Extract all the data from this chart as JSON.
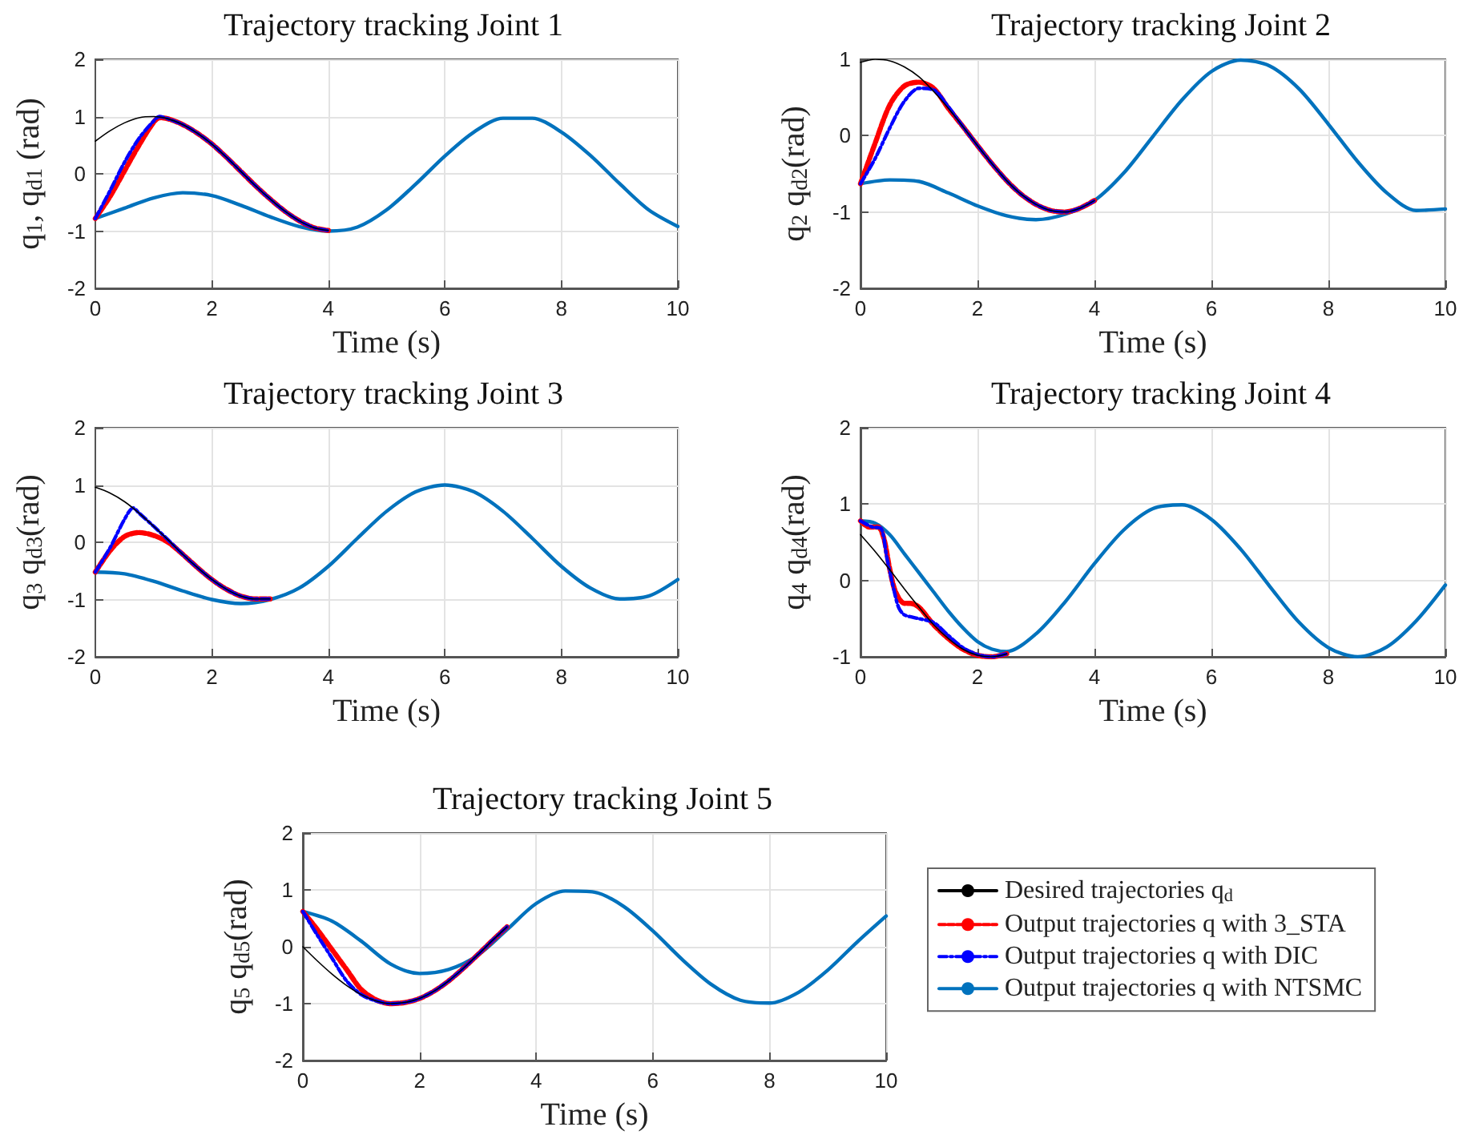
{
  "chart_data": [
    {
      "type": "line",
      "title": "Trajectory tracking Joint 1",
      "xlabel": "Time (s)",
      "ylabel": "q$_{1}$, q$_{d1}$ (rad)",
      "xlim": [
        0,
        10
      ],
      "xticks": [
        0,
        2,
        4,
        6,
        8,
        10
      ],
      "ylim": [
        -2,
        2
      ],
      "yticks": [
        -2,
        -1,
        0,
        1,
        2
      ],
      "grid": true,
      "series": [
        {
          "color": "#000000",
          "line_style": "solid",
          "x": [
            0,
            0.25,
            0.5,
            0.75,
            1,
            1.25,
            1.5,
            1.75,
            2,
            2.25,
            2.5,
            2.75,
            3,
            3.25,
            3.5,
            3.75,
            4
          ],
          "values": [
            0.57,
            0.75,
            0.89,
            0.98,
            1.0,
            0.96,
            0.86,
            0.71,
            0.52,
            0.29,
            0.04,
            -0.21,
            -0.44,
            -0.65,
            -0.82,
            -0.94,
            -0.99
          ]
        },
        {
          "color": "#ff0000",
          "line_style": "dashed",
          "x": [
            0,
            0.25,
            0.5,
            0.75,
            1,
            1.1,
            1.25,
            1.5,
            1.75,
            2,
            2.25,
            2.5,
            2.75,
            3,
            3.25,
            3.5,
            3.75,
            4
          ],
          "values": [
            -0.78,
            -0.4,
            0.05,
            0.5,
            0.9,
            0.98,
            0.96,
            0.86,
            0.71,
            0.52,
            0.29,
            0.04,
            -0.21,
            -0.44,
            -0.65,
            -0.82,
            -0.94,
            -0.99
          ]
        },
        {
          "color": "#0000ff",
          "line_style": "dotted",
          "x": [
            0,
            0.25,
            0.5,
            0.75,
            1,
            1.1,
            1.25,
            1.5,
            1.75,
            2,
            2.25,
            2.5,
            2.75,
            3,
            3.25,
            3.5,
            3.75,
            4
          ],
          "values": [
            -0.78,
            -0.3,
            0.2,
            0.62,
            0.92,
            1.0,
            0.96,
            0.86,
            0.71,
            0.52,
            0.29,
            0.04,
            -0.21,
            -0.44,
            -0.65,
            -0.82,
            -0.94,
            -0.99
          ]
        },
        {
          "color": "#0072bd",
          "line_style": "solid",
          "x": [
            0,
            0.5,
            1,
            1.5,
            2,
            2.5,
            3,
            3.5,
            4,
            4.5,
            5,
            5.5,
            6,
            6.5,
            7,
            7.5,
            8,
            8.5,
            9,
            9.5,
            10
          ],
          "values": [
            -0.78,
            -0.6,
            -0.42,
            -0.33,
            -0.38,
            -0.55,
            -0.75,
            -0.92,
            -1.0,
            -0.93,
            -0.63,
            -0.18,
            0.31,
            0.73,
            0.97,
            0.97,
            0.73,
            0.32,
            -0.17,
            -0.63,
            -0.92
          ]
        }
      ]
    },
    {
      "type": "line",
      "title": "Trajectory tracking Joint 2",
      "xlabel": "Time (s)",
      "ylabel": "q$_{2}$ q$_{d2}$(rad)",
      "xlim": [
        0,
        10
      ],
      "xticks": [
        0,
        2,
        4,
        6,
        8,
        10
      ],
      "ylim": [
        -2,
        1
      ],
      "yticks": [
        -2,
        -1,
        0,
        1
      ],
      "grid": true,
      "series": [
        {
          "color": "#000000",
          "line_style": "solid",
          "x": [
            0,
            0.25,
            0.5,
            0.75,
            1,
            1.25,
            1.5,
            1.75,
            2,
            2.25,
            2.5,
            2.75,
            3,
            3.25,
            3.5,
            3.75,
            4
          ],
          "values": [
            0.96,
            1.0,
            0.98,
            0.9,
            0.77,
            0.58,
            0.36,
            0.12,
            -0.13,
            -0.37,
            -0.59,
            -0.77,
            -0.9,
            -0.98,
            -1.0,
            -0.95,
            -0.85
          ]
        },
        {
          "color": "#ff0000",
          "line_style": "dashed",
          "x": [
            0,
            0.25,
            0.5,
            0.75,
            1,
            1.25,
            1.5,
            1.75,
            2,
            2.25,
            2.5,
            2.75,
            3,
            3.25,
            3.5,
            3.75,
            4
          ],
          "values": [
            -0.63,
            -0.1,
            0.4,
            0.65,
            0.7,
            0.62,
            0.36,
            0.12,
            -0.13,
            -0.37,
            -0.59,
            -0.77,
            -0.9,
            -0.98,
            -1.0,
            -0.95,
            -0.85
          ]
        },
        {
          "color": "#0000ff",
          "line_style": "dotted",
          "x": [
            0,
            0.25,
            0.5,
            0.75,
            1,
            1.25,
            1.5,
            1.75,
            2,
            2.25,
            2.5,
            2.75,
            3,
            3.25,
            3.5,
            3.75,
            4
          ],
          "values": [
            -0.63,
            -0.3,
            0.1,
            0.45,
            0.62,
            0.6,
            0.38,
            0.12,
            -0.13,
            -0.37,
            -0.59,
            -0.77,
            -0.9,
            -0.98,
            -1.0,
            -0.95,
            -0.85
          ]
        },
        {
          "color": "#0072bd",
          "line_style": "solid",
          "x": [
            0,
            0.5,
            1,
            1.5,
            2,
            2.5,
            3,
            3.5,
            4,
            4.5,
            5,
            5.5,
            6,
            6.5,
            7,
            7.5,
            8,
            8.5,
            9,
            9.5,
            10
          ],
          "values": [
            -0.63,
            -0.58,
            -0.6,
            -0.75,
            -0.92,
            -1.05,
            -1.1,
            -1.03,
            -0.85,
            -0.49,
            -0.01,
            0.47,
            0.84,
            0.99,
            0.91,
            0.61,
            0.15,
            -0.34,
            -0.75,
            -0.98,
            -0.96
          ]
        }
      ]
    },
    {
      "type": "line",
      "title": "Trajectory tracking Joint 3",
      "xlabel": "Time (s)",
      "ylabel": "q$_{3}$ q$_{d3}$(rad)",
      "xlim": [
        0,
        10
      ],
      "xticks": [
        0,
        2,
        4,
        6,
        8,
        10
      ],
      "ylim": [
        -2,
        2
      ],
      "yticks": [
        -2,
        -1,
        0,
        1,
        2
      ],
      "grid": true,
      "series": [
        {
          "color": "#000000",
          "line_style": "solid",
          "x": [
            0,
            0.25,
            0.5,
            0.75,
            1,
            1.25,
            1.5,
            1.75,
            2,
            2.25,
            2.5,
            2.75,
            3
          ],
          "values": [
            0.96,
            0.86,
            0.71,
            0.51,
            0.28,
            0.04,
            -0.21,
            -0.44,
            -0.65,
            -0.82,
            -0.94,
            -0.99,
            -0.99
          ]
        },
        {
          "color": "#ff0000",
          "line_style": "dashed",
          "x": [
            0,
            0.25,
            0.5,
            0.75,
            1,
            1.25,
            1.5,
            1.75,
            2,
            2.25,
            2.5,
            2.75,
            3
          ],
          "values": [
            -0.52,
            -0.15,
            0.1,
            0.17,
            0.12,
            0.0,
            -0.21,
            -0.44,
            -0.65,
            -0.82,
            -0.94,
            -0.99,
            -0.99
          ]
        },
        {
          "color": "#0000ff",
          "line_style": "dotted",
          "x": [
            0,
            0.25,
            0.5,
            0.65,
            0.75,
            1,
            1.25,
            1.5,
            1.75,
            2,
            2.25,
            2.5,
            2.75,
            3
          ],
          "values": [
            -0.52,
            -0.1,
            0.4,
            0.6,
            0.51,
            0.28,
            0.04,
            -0.21,
            -0.44,
            -0.65,
            -0.82,
            -0.94,
            -0.99,
            -0.99
          ]
        },
        {
          "color": "#0072bd",
          "line_style": "solid",
          "x": [
            0,
            0.5,
            1,
            1.5,
            2,
            2.5,
            3,
            3.5,
            4,
            4.5,
            5,
            5.5,
            6,
            6.5,
            7,
            7.5,
            8,
            8.5,
            9,
            9.5,
            10
          ],
          "values": [
            -0.52,
            -0.55,
            -0.68,
            -0.85,
            -1.0,
            -1.07,
            -1.0,
            -0.8,
            -0.42,
            0.07,
            0.54,
            0.88,
            1.0,
            0.88,
            0.54,
            0.07,
            -0.42,
            -0.8,
            -0.99,
            -0.94,
            -0.65
          ]
        }
      ]
    },
    {
      "type": "line",
      "title": "Trajectory tracking Joint 4",
      "xlabel": "Time (s)",
      "ylabel": "q$_{4}$ q$_{d4}$(rad)",
      "xlim": [
        0,
        10
      ],
      "xticks": [
        0,
        2,
        4,
        6,
        8,
        10
      ],
      "ylim": [
        -1,
        2
      ],
      "yticks": [
        -1,
        0,
        1,
        2
      ],
      "grid": true,
      "series": [
        {
          "color": "#000000",
          "line_style": "solid",
          "x": [
            0,
            0.25,
            0.5,
            0.75,
            1,
            1.25,
            1.5,
            1.75,
            2,
            2.25,
            2.5
          ],
          "values": [
            0.6,
            0.38,
            0.14,
            -0.11,
            -0.35,
            -0.58,
            -0.76,
            -0.9,
            -0.98,
            -1.0,
            -0.96
          ]
        },
        {
          "color": "#ff0000",
          "line_style": "dashed",
          "x": [
            0,
            0.15,
            0.3,
            0.4,
            0.5,
            0.6,
            0.75,
            0.85,
            1,
            1.25,
            1.5,
            1.75,
            2,
            2.25,
            2.5
          ],
          "values": [
            0.78,
            0.7,
            0.7,
            0.55,
            0.15,
            -0.15,
            -0.3,
            -0.3,
            -0.35,
            -0.58,
            -0.76,
            -0.9,
            -0.98,
            -1.0,
            -0.96
          ]
        },
        {
          "color": "#0000ff",
          "line_style": "dotted",
          "x": [
            0,
            0.2,
            0.35,
            0.45,
            0.55,
            0.65,
            0.75,
            1,
            1.25,
            1.5,
            1.75,
            2,
            2.25,
            2.5
          ],
          "values": [
            0.78,
            0.7,
            0.68,
            0.3,
            -0.05,
            -0.35,
            -0.45,
            -0.5,
            -0.55,
            -0.72,
            -0.88,
            -0.97,
            -1.0,
            -0.96
          ]
        },
        {
          "color": "#0072bd",
          "line_style": "solid",
          "x": [
            0,
            0.25,
            0.5,
            0.75,
            1,
            1.25,
            1.5,
            1.75,
            2,
            2.25,
            2.5,
            3,
            3.5,
            4,
            4.5,
            5,
            5.5,
            6,
            6.5,
            7,
            7.5,
            8,
            8.5,
            9,
            9.5,
            10
          ],
          "values": [
            0.78,
            0.75,
            0.6,
            0.35,
            0.1,
            -0.15,
            -0.4,
            -0.62,
            -0.8,
            -0.9,
            -0.93,
            -0.7,
            -0.28,
            0.22,
            0.66,
            0.94,
            0.99,
            0.8,
            0.41,
            -0.08,
            -0.55,
            -0.88,
            -1.0,
            -0.87,
            -0.53,
            -0.06
          ]
        }
      ]
    },
    {
      "type": "line",
      "title": "Trajectory tracking Joint 5",
      "xlabel": "Time (s)",
      "ylabel": "q$_{5}$ q$_{d5}$(rad)",
      "xlim": [
        0,
        10
      ],
      "xticks": [
        0,
        2,
        4,
        6,
        8,
        10
      ],
      "ylim": [
        -2,
        2
      ],
      "yticks": [
        -2,
        -1,
        0,
        1,
        2
      ],
      "grid": true,
      "legend": "right",
      "series": [
        {
          "name": "Desired trajectories q$_{d}$",
          "color": "#000000",
          "line_style": "solid",
          "x": [
            0,
            0.25,
            0.5,
            0.75,
            1,
            1.25,
            1.5,
            1.75,
            2,
            2.25,
            2.5,
            2.75,
            3,
            3.25,
            3.5
          ],
          "values": [
            0,
            -0.25,
            -0.48,
            -0.68,
            -0.84,
            -0.95,
            -1.0,
            -0.98,
            -0.91,
            -0.78,
            -0.6,
            -0.38,
            -0.14,
            0.11,
            0.35
          ]
        },
        {
          "name": "Output trajectories q with 3_STA",
          "color": "#ff0000",
          "line_style": "dashed",
          "x": [
            0,
            0.25,
            0.5,
            0.75,
            1,
            1.25,
            1.5,
            1.75,
            2,
            2.25,
            2.5,
            2.75,
            3,
            3.25,
            3.5
          ],
          "values": [
            0.62,
            0.3,
            -0.05,
            -0.4,
            -0.75,
            -0.93,
            -1.0,
            -0.98,
            -0.91,
            -0.78,
            -0.6,
            -0.38,
            -0.14,
            0.11,
            0.35
          ]
        },
        {
          "name": "Output trajectories q with DIC",
          "color": "#0000ff",
          "line_style": "dotted",
          "x": [
            0,
            0.25,
            0.5,
            0.75,
            1,
            1.25,
            1.5,
            1.75,
            2,
            2.25,
            2.5,
            2.75,
            3,
            3.25,
            3.5
          ],
          "values": [
            0.62,
            0.2,
            -0.2,
            -0.6,
            -0.84,
            -0.95,
            -1.0,
            -0.98,
            -0.91,
            -0.78,
            -0.6,
            -0.38,
            -0.14,
            0.11,
            0.35
          ]
        },
        {
          "name": "Output trajectories q with NTSMC",
          "color": "#0072bd",
          "line_style": "solid",
          "x": [
            0,
            0.5,
            1,
            1.5,
            2,
            2.5,
            3,
            3.5,
            4,
            4.5,
            5,
            5.5,
            6,
            6.5,
            7,
            7.5,
            8,
            8.5,
            9,
            9.5,
            10
          ],
          "values": [
            0.62,
            0.45,
            0.1,
            -0.3,
            -0.47,
            -0.4,
            -0.15,
            0.3,
            0.76,
            0.98,
            0.96,
            0.71,
            0.28,
            -0.22,
            -0.66,
            -0.94,
            -0.99,
            -0.8,
            -0.41,
            0.08,
            0.54
          ]
        }
      ]
    }
  ]
}
